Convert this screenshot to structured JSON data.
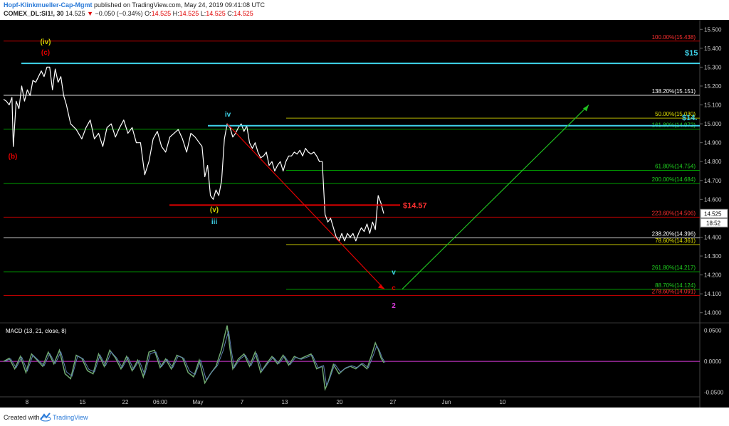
{
  "header": {
    "author": "Hopf-Klinkmueller-Cap-Mgmt",
    "published": "published on TradingView.com, May 24, 2019 09:41:08 UTC",
    "symbol": "COMEX_DL:SI1!, 30",
    "last": "14.525",
    "change": "−0.050 (−0.34%)",
    "open_label": "O:",
    "open": "14.525",
    "high_label": "H:",
    "high": "14.525",
    "low_label": "L:",
    "low": "14.525",
    "close_label": "C:",
    "close": "14.525"
  },
  "footer": {
    "created": "Created with",
    "brand": "TradingView"
  },
  "colors": {
    "background": "#000000",
    "price": "#ffffff",
    "axis_text": "#cccccc",
    "cyan": "#3fd4ea",
    "red": "#e00000",
    "green": "#00c000",
    "yellow": "#d0d000",
    "white_line": "#d8d8d8",
    "magenta": "#d93bdb",
    "macd": "#6fa870"
  },
  "chart_data": [
    {
      "type": "line",
      "title": "",
      "x_tick_labels": [
        "8",
        "15",
        "22",
        "06:00",
        "May",
        "7",
        "13",
        "20",
        "27",
        "Jun",
        "10"
      ],
      "y_tick_labels": [
        "15.500",
        "15.400",
        "15.300",
        "15.200",
        "15.100",
        "15.000",
        "14.900",
        "14.800",
        "14.700",
        "14.600",
        "14.500",
        "14.400",
        "14.300",
        "14.200",
        "14.100",
        "14.000"
      ],
      "ylim": [
        13.95,
        15.55
      ],
      "last_price_label": "14.525",
      "countdown_label": "18:52",
      "series": [
        {
          "x": [
            0,
            4,
            8,
            12,
            14,
            18,
            22,
            26,
            30,
            34,
            38,
            42,
            46,
            50,
            54,
            58,
            62,
            66,
            70,
            74,
            78,
            82,
            86,
            90,
            96,
            104,
            112,
            118,
            124,
            130,
            136,
            142,
            148,
            154,
            160,
            166,
            172,
            178,
            184,
            190,
            196,
            202,
            208,
            214,
            220,
            226,
            232,
            238,
            244,
            250,
            256,
            262,
            268,
            274,
            280,
            284,
            288,
            292,
            296,
            300,
            304,
            308,
            312,
            316,
            320,
            324,
            328,
            332,
            336,
            340,
            344,
            348,
            352,
            356,
            360,
            364,
            368,
            372,
            376,
            380,
            384,
            388,
            392,
            396,
            400,
            404,
            408,
            412,
            416,
            420,
            424,
            428,
            432,
            436,
            440,
            444,
            448,
            452,
            456,
            460,
            464,
            468,
            472,
            476,
            480,
            484,
            488,
            492,
            496,
            500,
            504,
            508,
            512,
            516,
            520,
            524,
            528,
            532,
            536,
            540,
            544
          ],
          "values": [
            15.13,
            15.12,
            15.1,
            15.14,
            14.88,
            15.12,
            15.08,
            15.2,
            15.12,
            15.18,
            15.15,
            15.23,
            15.22,
            15.25,
            15.28,
            15.25,
            15.3,
            15.3,
            15.18,
            15.29,
            15.22,
            15.25,
            15.15,
            15.1,
            15.0,
            14.97,
            14.92,
            14.98,
            15.02,
            14.92,
            14.95,
            14.88,
            14.98,
            15.0,
            14.93,
            14.98,
            15.02,
            14.95,
            14.98,
            14.9,
            14.9,
            14.73,
            14.8,
            14.92,
            14.96,
            14.88,
            14.85,
            14.93,
            14.95,
            14.97,
            14.92,
            14.85,
            14.95,
            14.93,
            14.9,
            14.88,
            14.72,
            14.78,
            14.62,
            14.6,
            14.65,
            14.62,
            14.7,
            14.92,
            15.0,
            14.98,
            14.93,
            14.95,
            14.98,
            15.0,
            14.96,
            14.99,
            14.9,
            14.87,
            14.9,
            14.85,
            14.82,
            14.83,
            14.85,
            14.78,
            14.8,
            14.75,
            14.78,
            14.8,
            14.75,
            14.8,
            14.83,
            14.83,
            14.85,
            14.84,
            14.86,
            14.83,
            14.87,
            14.85,
            14.84,
            14.85,
            14.83,
            14.8,
            14.8,
            14.52,
            14.48,
            14.5,
            14.45,
            14.4,
            14.38,
            14.42,
            14.38,
            14.42,
            14.4,
            14.42,
            14.38,
            14.42,
            14.45,
            14.43,
            14.47,
            14.42,
            14.48,
            14.44,
            14.62,
            14.58,
            14.525
          ]
        }
      ],
      "horizontal_levels": [
        {
          "label": "100.00%(15.438)",
          "value": 15.438,
          "color": "#b80000"
        },
        {
          "label": "138.20%(15.151)",
          "value": 15.151,
          "color": "#d8d8d8"
        },
        {
          "label": "50.00%(15.030)",
          "value": 15.03,
          "color": "#b0b000"
        },
        {
          "label": "161.80%(14.972)",
          "value": 14.972,
          "color": "#00a000"
        },
        {
          "label": "61.80%(14.754)",
          "value": 14.754,
          "color": "#00a000"
        },
        {
          "label": "200.00%(14.684)",
          "value": 14.684,
          "color": "#00a000"
        },
        {
          "label": "223.60%(14.506)",
          "value": 14.506,
          "color": "#b80000"
        },
        {
          "label": "238.20%(14.396)",
          "value": 14.396,
          "color": "#d8d8d8"
        },
        {
          "label": "78.60%(14.361)",
          "value": 14.361,
          "color": "#b0b000"
        },
        {
          "label": "261.80%(14.217)",
          "value": 14.217,
          "color": "#00a000"
        },
        {
          "label": "88.70%(14.124)",
          "value": 14.124,
          "color": "#00a000"
        },
        {
          "label": "278.60%(14.091)",
          "value": 14.091,
          "color": "#b80000"
        }
      ],
      "wave_labels": [
        {
          "text": "(iv)",
          "color": "#d0d000"
        },
        {
          "text": "(c)",
          "color": "#e00000"
        },
        {
          "text": "(b)",
          "color": "#e00000"
        },
        {
          "text": "iv",
          "color": "#3fd4ea"
        },
        {
          "text": "(v)",
          "color": "#d0d000"
        },
        {
          "text": "iii",
          "color": "#3fd4ea"
        },
        {
          "text": "v",
          "color": "#3fd4ea"
        },
        {
          "text": "c",
          "color": "#e00000"
        },
        {
          "text": "2",
          "color": "#d93bdb"
        }
      ],
      "annotations": [
        {
          "text": "$14.57",
          "value": 14.57,
          "color": "#ff3030"
        },
        {
          "text": "$15",
          "value": 15.32,
          "color": "#3fd4ea"
        },
        {
          "text": "$14.",
          "value": 14.99,
          "color": "#3fd4ea"
        }
      ]
    },
    {
      "type": "line",
      "title": "MACD (13, 21, close, 8)",
      "y_tick_labels": [
        "0.0500",
        "0.0000",
        "-0.0500"
      ],
      "ylim": [
        -0.055,
        0.06
      ],
      "series": [
        {
          "x": [
            0,
            8,
            16,
            24,
            32,
            40,
            48,
            56,
            64,
            72,
            80,
            88,
            96,
            104,
            112,
            120,
            128,
            136,
            144,
            152,
            160,
            168,
            176,
            184,
            192,
            200,
            208,
            216,
            224,
            232,
            240,
            248,
            256,
            264,
            272,
            280,
            288,
            296,
            304,
            312,
            316,
            320,
            324,
            328,
            336,
            344,
            352,
            360,
            368,
            376,
            384,
            392,
            400,
            408,
            416,
            424,
            432,
            440,
            448,
            456,
            460,
            464,
            472,
            480,
            488,
            496,
            504,
            512,
            520,
            528,
            532,
            536,
            540,
            544
          ],
          "values": [
            0.0,
            0.005,
            -0.012,
            0.008,
            -0.018,
            0.012,
            0.002,
            -0.008,
            0.015,
            -0.004,
            0.018,
            -0.02,
            -0.028,
            0.01,
            0.005,
            -0.015,
            -0.02,
            0.012,
            -0.008,
            0.018,
            0.006,
            -0.012,
            0.008,
            -0.015,
            0.002,
            -0.025,
            0.015,
            0.018,
            -0.01,
            0.004,
            -0.012,
            0.01,
            0.006,
            -0.018,
            -0.025,
            0.002,
            -0.035,
            -0.02,
            -0.008,
            0.02,
            0.04,
            0.058,
            0.02,
            -0.012,
            0.004,
            0.012,
            -0.008,
            0.015,
            -0.018,
            -0.004,
            0.008,
            -0.004,
            0.01,
            -0.006,
            0.008,
            0.004,
            0.008,
            0.012,
            -0.012,
            -0.008,
            -0.045,
            -0.035,
            -0.005,
            -0.02,
            -0.012,
            -0.008,
            -0.012,
            -0.004,
            -0.012,
            0.015,
            0.03,
            0.02,
            0.006,
            -0.002
          ]
        }
      ]
    }
  ]
}
